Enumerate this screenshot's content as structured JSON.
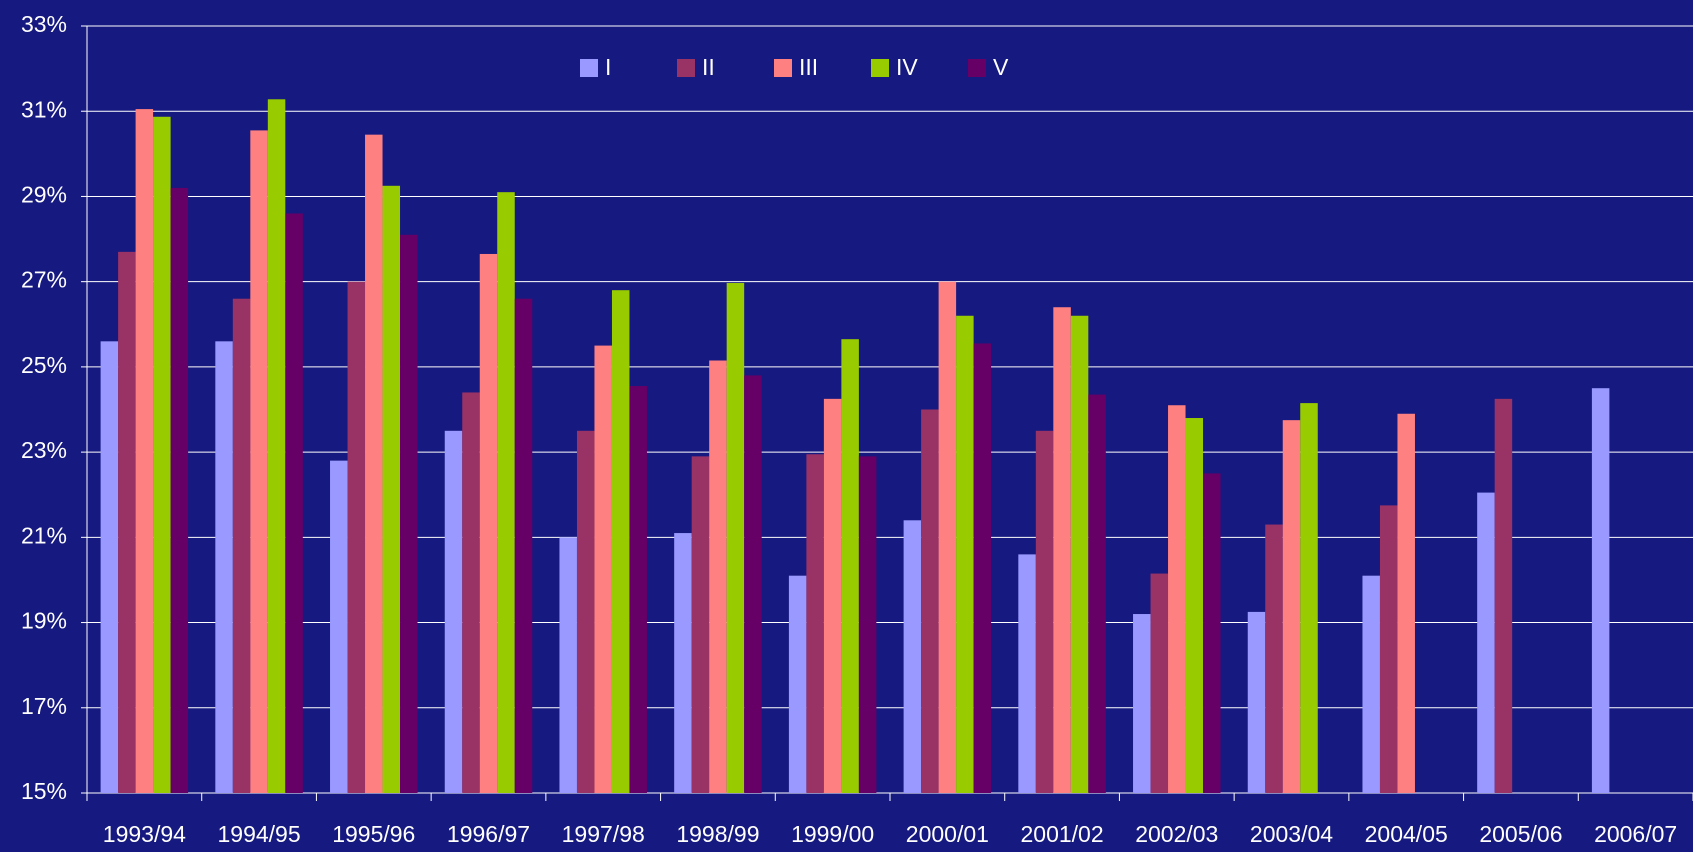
{
  "chart_data": {
    "type": "bar",
    "categories": [
      "1993/94",
      "1994/95",
      "1995/96",
      "1996/97",
      "1997/98",
      "1998/99",
      "1999/00",
      "2000/01",
      "2001/02",
      "2002/03",
      "2003/04",
      "2004/05",
      "2005/06",
      "2006/07"
    ],
    "series": [
      {
        "name": "I",
        "color": "#9999ff",
        "values": [
          25.6,
          25.6,
          22.8,
          23.5,
          21.0,
          21.1,
          20.1,
          21.4,
          20.6,
          19.2,
          19.25,
          20.1,
          22.05,
          24.5
        ]
      },
      {
        "name": "II",
        "color": "#993366",
        "values": [
          27.7,
          26.6,
          27.0,
          24.4,
          23.5,
          22.9,
          22.95,
          24.0,
          23.5,
          20.15,
          21.3,
          21.75,
          24.25,
          null
        ]
      },
      {
        "name": "III",
        "color": "#ff8080",
        "values": [
          31.05,
          30.55,
          30.45,
          27.65,
          25.5,
          25.15,
          24.25,
          27.0,
          26.4,
          24.1,
          23.75,
          23.9,
          null,
          null
        ]
      },
      {
        "name": "IV",
        "color": "#99cc00",
        "values": [
          30.87,
          31.28,
          29.25,
          29.1,
          26.8,
          26.97,
          25.65,
          26.2,
          26.2,
          23.8,
          24.15,
          null,
          null,
          null
        ]
      },
      {
        "name": "V",
        "color": "#660066",
        "values": [
          29.2,
          28.6,
          28.1,
          26.6,
          24.55,
          24.8,
          22.9,
          25.55,
          24.35,
          22.5,
          null,
          null,
          null,
          null
        ]
      }
    ],
    "ylim": [
      15,
      33
    ],
    "yticks": [
      {
        "value": 15,
        "label": "15%"
      },
      {
        "value": 17,
        "label": "17%"
      },
      {
        "value": 19,
        "label": "19%"
      },
      {
        "value": 21,
        "label": "21%"
      },
      {
        "value": 23,
        "label": "23%"
      },
      {
        "value": 25,
        "label": "25%"
      },
      {
        "value": 27,
        "label": "27%"
      },
      {
        "value": 29,
        "label": "29%"
      },
      {
        "value": 31,
        "label": "31%"
      },
      {
        "value": 33,
        "label": "33%"
      }
    ],
    "grid": true,
    "legend": "top"
  }
}
